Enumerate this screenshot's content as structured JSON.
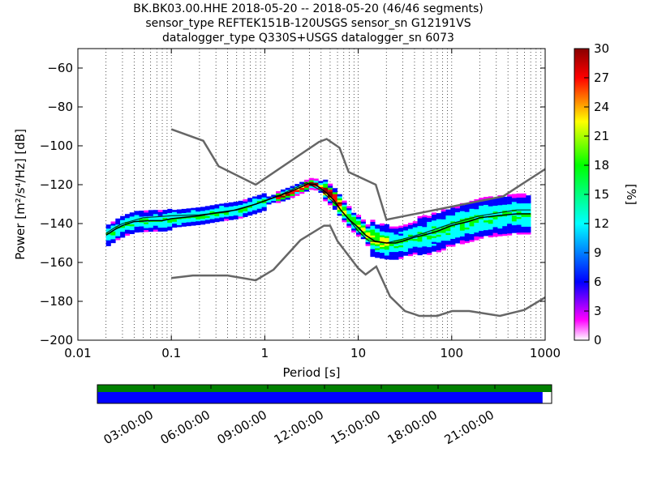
{
  "title": {
    "line1": "BK.BK03.00.HHE   2018-05-20 -- 2018-05-20  (46/46 segments)",
    "line2": "sensor_type REFTEK151B-120USGS sensor_sn G12191VS",
    "line3": "datalogger_type Q330S+USGS datalogger_sn 6073"
  },
  "chart_data": {
    "type": "heatmap",
    "xlabel": "Period [s]",
    "ylabel": "Power [m²/s⁴/Hz] [dB]",
    "xscale": "log",
    "xlim": [
      0.01,
      1000
    ],
    "ylim": [
      -200,
      -50
    ],
    "xticks": [
      {
        "value": 0.01,
        "label": "0.01"
      },
      {
        "value": 0.1,
        "label": "0.1"
      },
      {
        "value": 1,
        "label": "1"
      },
      {
        "value": 10,
        "label": "10"
      },
      {
        "value": 100,
        "label": "100"
      },
      {
        "value": 1000,
        "label": "1000"
      }
    ],
    "yticks": [
      {
        "value": -60,
        "label": "−60"
      },
      {
        "value": -80,
        "label": "−80"
      },
      {
        "value": -100,
        "label": "−100"
      },
      {
        "value": -120,
        "label": "−120"
      },
      {
        "value": -140,
        "label": "−140"
      },
      {
        "value": -160,
        "label": "−160"
      },
      {
        "value": -180,
        "label": "−180"
      },
      {
        "value": -200,
        "label": "−200"
      }
    ],
    "grid": "vertical dotted",
    "colorbar": {
      "label": "[%]",
      "range": [
        0,
        30
      ],
      "ticks": [
        "0",
        "3",
        "6",
        "9",
        "12",
        "15",
        "18",
        "21",
        "24",
        "27",
        "30"
      ],
      "colors": [
        "#ffffff",
        "#ff00ff",
        "#0000ff",
        "#00ffff",
        "#00ff00",
        "#ffff00",
        "#ff0000",
        "#880000"
      ]
    },
    "noise_models": [
      {
        "points": [
          [
            0.1,
            -91.5
          ],
          [
            0.22,
            -97.4
          ],
          [
            0.32,
            -110.5
          ],
          [
            0.8,
            -120
          ],
          [
            3.8,
            -98
          ],
          [
            4.6,
            -96.5
          ],
          [
            6.3,
            -101
          ],
          [
            7.9,
            -113.5
          ],
          [
            15.4,
            -120
          ],
          [
            20,
            -138
          ],
          [
            354.8,
            -126
          ],
          [
            1000,
            -112
          ]
        ]
      },
      {
        "points": [
          [
            0.1,
            -168
          ],
          [
            0.17,
            -166.7
          ],
          [
            0.4,
            -166.7
          ],
          [
            0.8,
            -169.2
          ],
          [
            1.24,
            -163.7
          ],
          [
            2.4,
            -148.6
          ],
          [
            4.3,
            -141.1
          ],
          [
            5,
            -141.1
          ],
          [
            6,
            -149
          ],
          [
            10,
            -163
          ],
          [
            12,
            -166.2
          ],
          [
            15.6,
            -162.1
          ],
          [
            21.9,
            -177.5
          ],
          [
            31.6,
            -185
          ],
          [
            45,
            -187.5
          ],
          [
            70,
            -187.5
          ],
          [
            101,
            -185
          ],
          [
            154,
            -185
          ],
          [
            328,
            -187.5
          ],
          [
            600,
            -184.4
          ],
          [
            1000,
            -178
          ]
        ]
      }
    ],
    "mean_curve": {
      "points": [
        [
          0.02,
          -146
        ],
        [
          0.025,
          -143
        ],
        [
          0.03,
          -141
        ],
        [
          0.04,
          -139
        ],
        [
          0.06,
          -138.5
        ],
        [
          0.08,
          -138.5
        ],
        [
          0.1,
          -137.5
        ],
        [
          0.2,
          -136
        ],
        [
          0.3,
          -134.5
        ],
        [
          0.5,
          -133
        ],
        [
          0.8,
          -130
        ],
        [
          1.2,
          -127
        ],
        [
          1.8,
          -124
        ],
        [
          2.5,
          -121
        ],
        [
          2.9,
          -119.5
        ],
        [
          3.5,
          -120
        ],
        [
          4.5,
          -124
        ],
        [
          5.5,
          -128
        ],
        [
          6.5,
          -133
        ],
        [
          8,
          -138
        ],
        [
          10,
          -142
        ],
        [
          12,
          -146
        ],
        [
          15,
          -149
        ],
        [
          20,
          -150
        ],
        [
          25,
          -150
        ],
        [
          30,
          -149
        ],
        [
          40,
          -147
        ],
        [
          50,
          -146
        ],
        [
          70,
          -144
        ],
        [
          100,
          -141
        ],
        [
          150,
          -139
        ],
        [
          200,
          -137
        ],
        [
          300,
          -136
        ],
        [
          500,
          -135
        ],
        [
          700,
          -135
        ]
      ]
    },
    "histogram_mode": {
      "points": [
        [
          0.02,
          -145
        ],
        [
          0.025,
          -142
        ],
        [
          0.03,
          -140
        ],
        [
          0.05,
          -137
        ],
        [
          0.1,
          -136
        ],
        [
          0.2,
          -135.5
        ],
        [
          0.4,
          -134
        ],
        [
          0.8,
          -130
        ],
        [
          1.5,
          -125
        ],
        [
          2.8,
          -119
        ],
        [
          4,
          -123
        ],
        [
          6,
          -131
        ],
        [
          8,
          -138
        ],
        [
          10,
          -144
        ],
        [
          13,
          -149
        ],
        [
          20,
          -150
        ],
        [
          30,
          -148
        ],
        [
          50,
          -145
        ],
        [
          100,
          -140
        ],
        [
          200,
          -136
        ],
        [
          500,
          -133
        ],
        [
          700,
          -133
        ]
      ]
    }
  },
  "timeline": {
    "ticks": [
      "03:00:00",
      "06:00:00",
      "09:00:00",
      "12:00:00",
      "15:00:00",
      "18:00:00",
      "21:00:00"
    ],
    "data_coverage_fraction": 0.98,
    "gap_fraction": 0.02,
    "colors": {
      "available": "#008000",
      "used": "#0000ff"
    }
  }
}
